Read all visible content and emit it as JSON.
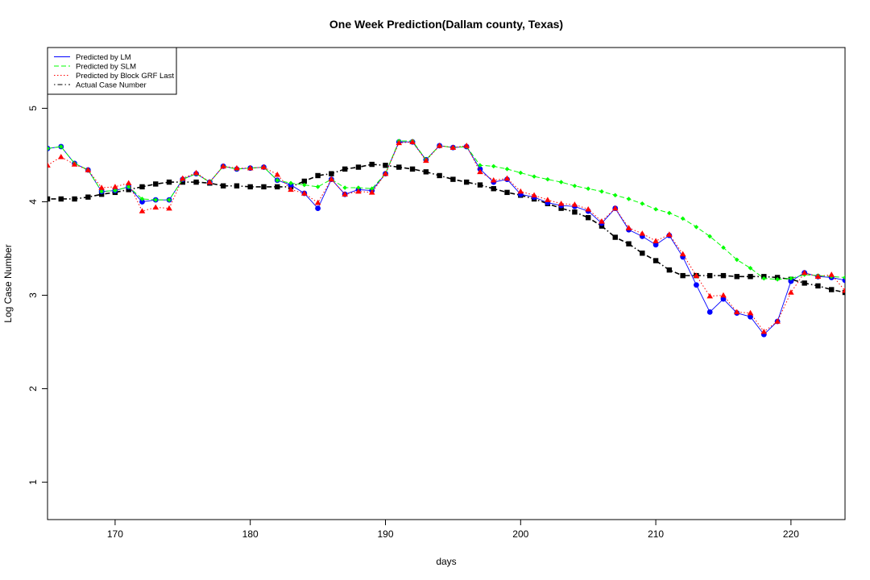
{
  "chart_data": {
    "type": "line",
    "title": "One Week Prediction(Dallam county, Texas)",
    "xlabel": "days",
    "ylabel": "Log Case Number",
    "xlim": [
      165,
      224
    ],
    "ylim": [
      0.6,
      5.65
    ],
    "xticks": [
      170,
      180,
      190,
      200,
      210,
      220
    ],
    "yticks": [
      1,
      2,
      3,
      4,
      5
    ],
    "grid": false,
    "legend_position": "top-left",
    "x": [
      165,
      166,
      167,
      168,
      169,
      170,
      171,
      172,
      173,
      174,
      175,
      176,
      177,
      178,
      179,
      180,
      181,
      182,
      183,
      184,
      185,
      186,
      187,
      188,
      189,
      190,
      191,
      192,
      193,
      194,
      195,
      196,
      197,
      198,
      199,
      200,
      201,
      202,
      203,
      204,
      205,
      206,
      207,
      208,
      209,
      210,
      211,
      212,
      213,
      214,
      215,
      216,
      217,
      218,
      219,
      220,
      221,
      222,
      223,
      224
    ],
    "series": [
      {
        "name": "Predicted by LM",
        "color": "#0000ff",
        "line_style": "solid",
        "marker": "circle",
        "values": [
          4.57,
          4.59,
          4.41,
          4.34,
          4.11,
          4.12,
          4.16,
          4.0,
          4.02,
          4.02,
          4.24,
          4.3,
          4.21,
          4.38,
          4.35,
          4.36,
          4.37,
          4.23,
          4.18,
          4.09,
          3.93,
          4.24,
          4.08,
          4.13,
          4.12,
          4.3,
          4.64,
          4.64,
          4.45,
          4.6,
          4.58,
          4.59,
          4.35,
          4.21,
          4.24,
          4.08,
          4.05,
          3.99,
          3.96,
          3.95,
          3.9,
          3.77,
          3.93,
          3.7,
          3.63,
          3.54,
          3.64,
          3.41,
          3.11,
          2.82,
          2.96,
          2.81,
          2.77,
          2.58,
          2.72,
          3.15,
          3.24,
          3.2,
          3.19,
          3.16
        ]
      },
      {
        "name": "Predicted by SLM",
        "color": "#00ff00",
        "line_style": "dashed",
        "marker": "diamond",
        "values": [
          4.57,
          4.59,
          4.41,
          4.34,
          4.11,
          4.12,
          4.16,
          4.03,
          4.02,
          4.02,
          4.24,
          4.3,
          4.21,
          4.38,
          4.35,
          4.36,
          4.37,
          4.23,
          4.2,
          4.18,
          4.16,
          4.24,
          4.15,
          4.15,
          4.14,
          4.3,
          4.65,
          4.65,
          4.45,
          4.6,
          4.58,
          4.59,
          4.39,
          4.38,
          4.35,
          4.31,
          4.27,
          4.24,
          4.21,
          4.17,
          4.14,
          4.11,
          4.07,
          4.03,
          3.98,
          3.92,
          3.88,
          3.82,
          3.73,
          3.63,
          3.51,
          3.38,
          3.29,
          3.18,
          3.17,
          3.18,
          3.22,
          3.21,
          3.2,
          3.19
        ]
      },
      {
        "name": "Predicted by Block GRF Last",
        "color": "#ff0000",
        "line_style": "dotted",
        "marker": "triangle",
        "values": [
          4.39,
          4.48,
          4.4,
          4.34,
          4.15,
          4.16,
          4.2,
          3.9,
          3.94,
          3.93,
          4.25,
          4.31,
          4.21,
          4.38,
          4.36,
          4.36,
          4.37,
          4.29,
          4.13,
          4.09,
          3.99,
          4.24,
          4.08,
          4.11,
          4.1,
          4.3,
          4.63,
          4.64,
          4.44,
          4.6,
          4.58,
          4.6,
          4.32,
          4.23,
          4.25,
          4.11,
          4.07,
          4.02,
          3.98,
          3.97,
          3.92,
          3.79,
          3.93,
          3.72,
          3.66,
          3.58,
          3.65,
          3.44,
          3.21,
          2.99,
          3.0,
          2.82,
          2.81,
          2.61,
          2.72,
          3.03,
          3.24,
          3.2,
          3.22,
          3.05
        ]
      },
      {
        "name": "Actual Case Number",
        "color": "#000000",
        "line_style": "dotdash",
        "marker": "square",
        "values": [
          4.03,
          4.03,
          4.03,
          4.05,
          4.08,
          4.1,
          4.13,
          4.16,
          4.19,
          4.21,
          4.21,
          4.21,
          4.2,
          4.17,
          4.17,
          4.16,
          4.16,
          4.16,
          4.16,
          4.22,
          4.28,
          4.3,
          4.35,
          4.37,
          4.4,
          4.39,
          4.37,
          4.35,
          4.32,
          4.28,
          4.24,
          4.21,
          4.18,
          4.14,
          4.1,
          4.07,
          4.03,
          3.98,
          3.93,
          3.89,
          3.83,
          3.74,
          3.62,
          3.55,
          3.45,
          3.37,
          3.27,
          3.21,
          3.21,
          3.21,
          3.21,
          3.2,
          3.2,
          3.2,
          3.19,
          3.17,
          3.13,
          3.1,
          3.06,
          3.03
        ]
      }
    ]
  }
}
